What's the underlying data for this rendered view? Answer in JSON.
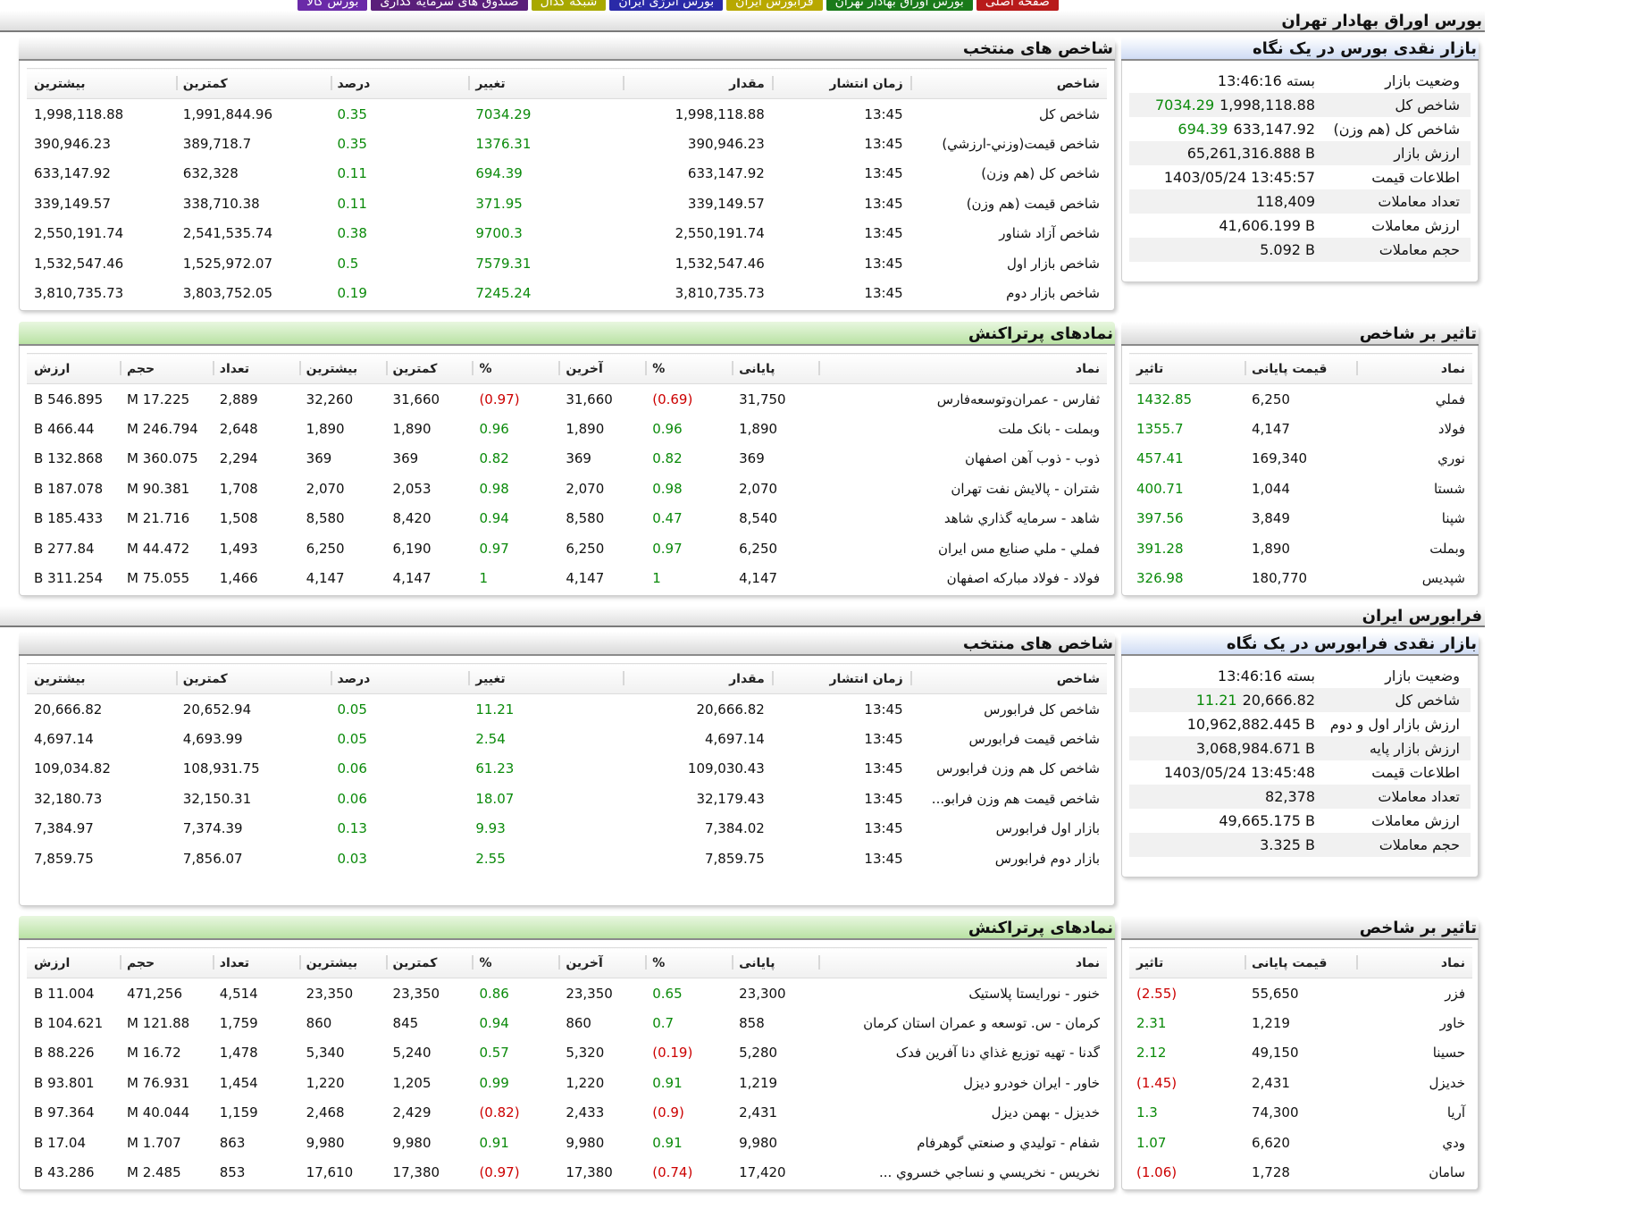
{
  "top_tabs": [
    {
      "label": "بورس کالا",
      "color": "#6a2aa8"
    },
    {
      "label": "صندوق های سرمایه گذاری",
      "color": "#5a1f7a"
    },
    {
      "label": "شبکه کدال",
      "color": "#a8a800"
    },
    {
      "label": "بورس انرژی ایران",
      "color": "#2a2aa8"
    },
    {
      "label": "فرابورس ایران",
      "color": "#b8a800"
    },
    {
      "label": "بورس اوراق بهادار تهران",
      "color": "#1a7a1a"
    },
    {
      "label": "صفحه اصلی",
      "color": "#b81a1a"
    }
  ],
  "tehran": {
    "section_title": "بورس اوراق بهادار تهران",
    "glance": {
      "title": "بازار نقدی بورس در یک نگاه",
      "rows": [
        {
          "label": "وضعیت بازار",
          "value": "بسته 13:46:16",
          "change": ""
        },
        {
          "label": "شاخص کل",
          "value": "1,998,118.88",
          "change": "7034.29"
        },
        {
          "label": "شاخص کل (هم وزن)",
          "value": "633,147.92",
          "change": "694.39"
        },
        {
          "label": "ارزش بازار",
          "value": "65,261,316.888 B",
          "change": ""
        },
        {
          "label": "اطلاعات قیمت",
          "value": "1403/05/24 13:45:57",
          "change": ""
        },
        {
          "label": "تعداد معاملات",
          "value": "118,409",
          "change": ""
        },
        {
          "label": "ارزش معاملات",
          "value": "41,606.199 B",
          "change": ""
        },
        {
          "label": "حجم معاملات",
          "value": "5.092 B",
          "change": ""
        }
      ]
    },
    "indices": {
      "title": "شاخص های منتخب",
      "headers": [
        "شاخص",
        "زمان انتشار",
        "مقدار",
        "تغییر",
        "درصد",
        "کمترین",
        "بیشترین"
      ],
      "rows": [
        [
          "شاخص كل",
          "13:45",
          "1,998,118.88",
          "7034.29",
          "0.35",
          "1,991,844.96",
          "1,998,118.88"
        ],
        [
          "شاخص قيمت(وزني-ارزشي)",
          "13:45",
          "390,946.23",
          "1376.31",
          "0.35",
          "389,718.7",
          "390,946.23"
        ],
        [
          "شاخص كل (هم وزن)",
          "13:45",
          "633,147.92",
          "694.39",
          "0.11",
          "632,328",
          "633,147.92"
        ],
        [
          "شاخص قيمت (هم وزن)",
          "13:45",
          "339,149.57",
          "371.95",
          "0.11",
          "338,710.38",
          "339,149.57"
        ],
        [
          "شاخص آزاد شناور",
          "13:45",
          "2,550,191.74",
          "9700.3",
          "0.38",
          "2,541,535.74",
          "2,550,191.74"
        ],
        [
          "شاخص بازار اول",
          "13:45",
          "1,532,547.46",
          "7579.31",
          "0.5",
          "1,525,972.07",
          "1,532,547.46"
        ],
        [
          "شاخص بازار دوم",
          "13:45",
          "3,810,735.73",
          "7245.24",
          "0.19",
          "3,803,752.05",
          "3,810,735.73"
        ]
      ]
    },
    "impact": {
      "title": "تاثیر بر شاخص",
      "headers": [
        "نماد",
        "قیمت پایانی",
        "تاثیر"
      ],
      "rows": [
        [
          "فملي",
          "6,250",
          "1432.85"
        ],
        [
          "فولاد",
          "4,147",
          "1355.7"
        ],
        [
          "نوري",
          "169,340",
          "457.41"
        ],
        [
          "شستا",
          "1,044",
          "400.71"
        ],
        [
          "شپنا",
          "3,849",
          "397.56"
        ],
        [
          "وبملت",
          "1,890",
          "391.28"
        ],
        [
          "شپديس",
          "180,770",
          "326.98"
        ]
      ]
    },
    "active": {
      "title": "نمادهای پرتراکنش",
      "headers": [
        "نماد",
        "پایانی",
        "%",
        "آخرین",
        "%",
        "کمترین",
        "بیشترین",
        "تعداد",
        "حجم",
        "ارزش"
      ],
      "rows": [
        [
          "ثفارس - عمران‌وتوسعه‌فارس",
          "31,750",
          "(0.69)",
          "31,660",
          "(0.97)",
          "31,660",
          "32,260",
          "2,889",
          "17.225 M",
          "546.895 B"
        ],
        [
          "وبملت - بانک ملت",
          "1,890",
          "0.96",
          "1,890",
          "0.96",
          "1,890",
          "1,890",
          "2,648",
          "246.794 M",
          "466.44 B"
        ],
        [
          "ذوب - ذوب آهن اصفهان",
          "369",
          "0.82",
          "369",
          "0.82",
          "369",
          "369",
          "2,294",
          "360.075 M",
          "132.868 B"
        ],
        [
          "شتران - پالايش نفت تهران",
          "2,070",
          "0.98",
          "2,070",
          "0.98",
          "2,053",
          "2,070",
          "1,708",
          "90.381 M",
          "187.078 B"
        ],
        [
          "شاهد - سرمايه گذاري شاهد",
          "8,540",
          "0.47",
          "8,580",
          "0.94",
          "8,420",
          "8,580",
          "1,508",
          "21.716 M",
          "185.433 B"
        ],
        [
          "فملي - ملي صنايع مس ايران",
          "6,250",
          "0.97",
          "6,250",
          "0.97",
          "6,190",
          "6,250",
          "1,493",
          "44.472 M",
          "277.84 B"
        ],
        [
          "فولاد - فولاد مباركه اصفهان",
          "4,147",
          "1",
          "4,147",
          "1",
          "4,147",
          "4,147",
          "1,466",
          "75.055 M",
          "311.254 B"
        ]
      ]
    }
  },
  "farabourse": {
    "section_title": "فرابورس ایران",
    "glance": {
      "title": "بازار نقدی فرابورس در یک نگاه",
      "rows": [
        {
          "label": "وضعیت بازار",
          "value": "بسته 13:46:16",
          "change": ""
        },
        {
          "label": "شاخص کل",
          "value": "20,666.82",
          "change": "11.21"
        },
        {
          "label": "ارزش بازار اول و دوم",
          "value": "10,962,882.445 B",
          "change": ""
        },
        {
          "label": "ارزش بازار پایه",
          "value": "3,068,984.671 B",
          "change": ""
        },
        {
          "label": "اطلاعات قیمت",
          "value": "1403/05/24 13:45:48",
          "change": ""
        },
        {
          "label": "تعداد معاملات",
          "value": "82,378",
          "change": ""
        },
        {
          "label": "ارزش معاملات",
          "value": "49,665.175 B",
          "change": ""
        },
        {
          "label": "حجم معاملات",
          "value": "3.325 B",
          "change": ""
        }
      ]
    },
    "indices": {
      "title": "شاخص های منتخب",
      "headers": [
        "شاخص",
        "زمان انتشار",
        "مقدار",
        "تغییر",
        "درصد",
        "کمترین",
        "بیشترین"
      ],
      "rows": [
        [
          "شاخص کل فرابورس",
          "13:45",
          "20,666.82",
          "11.21",
          "0.05",
          "20,652.94",
          "20,666.82"
        ],
        [
          "شاخص قیمت فرابورس",
          "13:45",
          "4,697.14",
          "2.54",
          "0.05",
          "4,693.99",
          "4,697.14"
        ],
        [
          "شاخص کل هم وزن فرابورس",
          "13:45",
          "109,030.43",
          "61.23",
          "0.06",
          "108,931.75",
          "109,034.82"
        ],
        [
          "شاخص قیمت هم وزن فرابو...",
          "13:45",
          "32,179.43",
          "18.07",
          "0.06",
          "32,150.31",
          "32,180.73"
        ],
        [
          "بازار اول فرابورس",
          "13:45",
          "7,384.02",
          "9.93",
          "0.13",
          "7,374.39",
          "7,384.97"
        ],
        [
          "بازار دوم فرابورس",
          "13:45",
          "7,859.75",
          "2.55",
          "0.03",
          "7,856.07",
          "7,859.75"
        ]
      ]
    },
    "impact": {
      "title": "تاثیر بر شاخص",
      "headers": [
        "نماد",
        "قیمت پایانی",
        "تاثیر"
      ],
      "rows": [
        [
          "فزر",
          "55,650",
          "(2.55)"
        ],
        [
          "خاور",
          "1,219",
          "2.31"
        ],
        [
          "حسينا",
          "49,150",
          "2.12"
        ],
        [
          "خديزل",
          "2,431",
          "(1.45)"
        ],
        [
          "آريا",
          "74,300",
          "1.3"
        ],
        [
          "ودي",
          "6,620",
          "1.07"
        ],
        [
          "سامان",
          "1,728",
          "(1.06)"
        ]
      ]
    },
    "active": {
      "title": "نمادهای پرتراکنش",
      "headers": [
        "نماد",
        "پایانی",
        "%",
        "آخرین",
        "%",
        "کمترین",
        "بیشترین",
        "تعداد",
        "حجم",
        "ارزش"
      ],
      "rows": [
        [
          "خنور - نورايستا پلاستيک",
          "23,300",
          "0.65",
          "23,350",
          "0.86",
          "23,350",
          "23,350",
          "4,514",
          "471,256",
          "11.004 B"
        ],
        [
          "كرمان - س. توسعه و عمران استان كرمان",
          "858",
          "0.7",
          "860",
          "0.94",
          "845",
          "860",
          "1,759",
          "121.88 M",
          "104.621 B"
        ],
        [
          "گدنا - تهيه توزيع غذاي دنا آفرين فدک",
          "5,280",
          "(0.19)",
          "5,320",
          "0.57",
          "5,240",
          "5,340",
          "1,478",
          "16.72 M",
          "88.226 B"
        ],
        [
          "خاور - ايران خودرو ديزل",
          "1,219",
          "0.91",
          "1,220",
          "0.99",
          "1,205",
          "1,220",
          "1,454",
          "76.931 M",
          "93.801 B"
        ],
        [
          "خديزل - بهمن ديزل",
          "2,431",
          "(0.9)",
          "2,433",
          "(0.82)",
          "2,429",
          "2,468",
          "1,159",
          "40.044 M",
          "97.364 B"
        ],
        [
          "شفام - توليدي و صنعتي گوهرفام",
          "9,980",
          "0.91",
          "9,980",
          "0.91",
          "9,980",
          "9,980",
          "863",
          "1.707 M",
          "17.04 B"
        ],
        [
          "نخريس - نخريسي و نساجي خسروي ...",
          "17,420",
          "(0.74)",
          "17,380",
          "(0.97)",
          "17,380",
          "17,610",
          "853",
          "2.485 M",
          "43.286 B"
        ]
      ]
    }
  }
}
